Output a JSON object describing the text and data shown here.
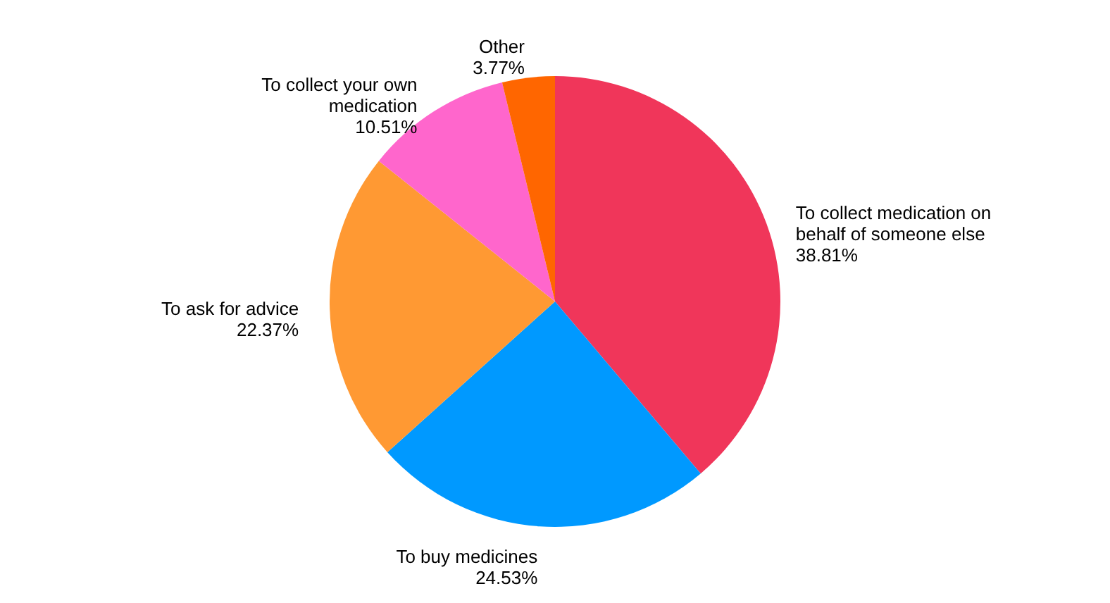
{
  "chart_data": {
    "type": "pie",
    "categories": [
      "To collect medication on behalf of someone else",
      "To buy medicines",
      "To ask for advice",
      "To collect your own medication",
      "Other"
    ],
    "values": [
      38.81,
      24.53,
      22.37,
      10.51,
      3.77
    ],
    "colors": [
      "#f0365a",
      "#0099ff",
      "#ff9933",
      "#ff66cc",
      "#ff6600"
    ],
    "value_labels": [
      "38.81%",
      "24.53%",
      "22.37%",
      "10.51%",
      "3.77%"
    ]
  }
}
